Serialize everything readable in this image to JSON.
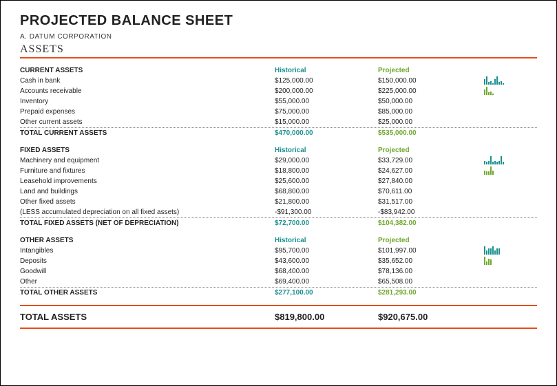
{
  "title": "PROJECTED BALANCE SHEET",
  "company": "A. DATUM CORPORATION",
  "section_title": "ASSETS",
  "colors": {
    "accent_rule": "#e84c1a",
    "historical": "#1a8f8f",
    "projected": "#6fa82e",
    "text": "#222222",
    "dotted": "#888888",
    "spark_hist": "#1a8f8f",
    "spark_proj": "#6fa82e"
  },
  "columns": {
    "label": "",
    "historical": "Historical",
    "projected": "Projected"
  },
  "groups": [
    {
      "name": "CURRENT ASSETS",
      "rows": [
        {
          "label": "Cash in bank",
          "historical": "$125,000.00",
          "projected": "$150,000.00"
        },
        {
          "label": "Accounts receivable",
          "historical": "$200,000.00",
          "projected": "$225,000.00"
        },
        {
          "label": "Inventory",
          "historical": "$55,000.00",
          "projected": "$50,000.00"
        },
        {
          "label": "Prepaid expenses",
          "historical": "$75,000.00",
          "projected": "$85,000.00"
        },
        {
          "label": "Other current assets",
          "historical": "$15,000.00",
          "projected": "$25,000.00"
        }
      ],
      "total": {
        "label": "TOTAL CURRENT ASSETS",
        "historical": "$470,000.00",
        "projected": "$535,000.00"
      },
      "spark": {
        "hist": [
          6,
          10,
          3,
          4,
          1,
          6,
          10,
          3,
          4,
          1
        ],
        "proj": [
          7,
          11,
          3,
          4,
          1
        ]
      }
    },
    {
      "name": "FIXED ASSETS",
      "rows": [
        {
          "label": "Machinery and equipment",
          "historical": "$29,000.00",
          "projected": "$33,729.00"
        },
        {
          "label": "Furniture and fixtures",
          "historical": "$18,800.00",
          "projected": "$24,627.00"
        },
        {
          "label": "Leasehold improvements",
          "historical": "$25,600.00",
          "projected": "$27,840.00"
        },
        {
          "label": "Land and buildings",
          "historical": "$68,800.00",
          "projected": "$70,611.00"
        },
        {
          "label": "Other fixed assets",
          "historical": "$21,800.00",
          "projected": "$31,517.00"
        },
        {
          "label": "(LESS accumulated depreciation on all fixed assets)",
          "historical": "-$91,300.00",
          "projected": "-$83,942.00"
        }
      ],
      "total": {
        "label": "TOTAL FIXED ASSETS (NET OF DEPRECIATION)",
        "historical": "$72,700.00",
        "projected": "$104,382.00"
      },
      "spark": {
        "hist": [
          4,
          3,
          4,
          10,
          3,
          4,
          3,
          4,
          10,
          3
        ],
        "proj": [
          5,
          4,
          4,
          10,
          5
        ]
      }
    },
    {
      "name": "OTHER ASSETS",
      "rows": [
        {
          "label": "Intangibles",
          "historical": "$95,700.00",
          "projected": "$101,997.00"
        },
        {
          "label": "Deposits",
          "historical": "$43,600.00",
          "projected": "$35,652.00"
        },
        {
          "label": "Goodwill",
          "historical": "$68,400.00",
          "projected": "$78,136.00"
        },
        {
          "label": "Other",
          "historical": "$69,400.00",
          "projected": "$65,508.00"
        }
      ],
      "total": {
        "label": "TOTAL OTHER ASSETS",
        "historical": "$277,100.00",
        "projected": "$281,293.00"
      },
      "spark": {
        "hist": [
          10,
          5,
          7,
          7,
          10,
          5,
          7,
          7
        ],
        "proj": [
          11,
          4,
          8,
          7
        ]
      }
    }
  ],
  "grand_total": {
    "label": "TOTAL ASSETS",
    "historical": "$819,800.00",
    "projected": "$920,675.00"
  }
}
